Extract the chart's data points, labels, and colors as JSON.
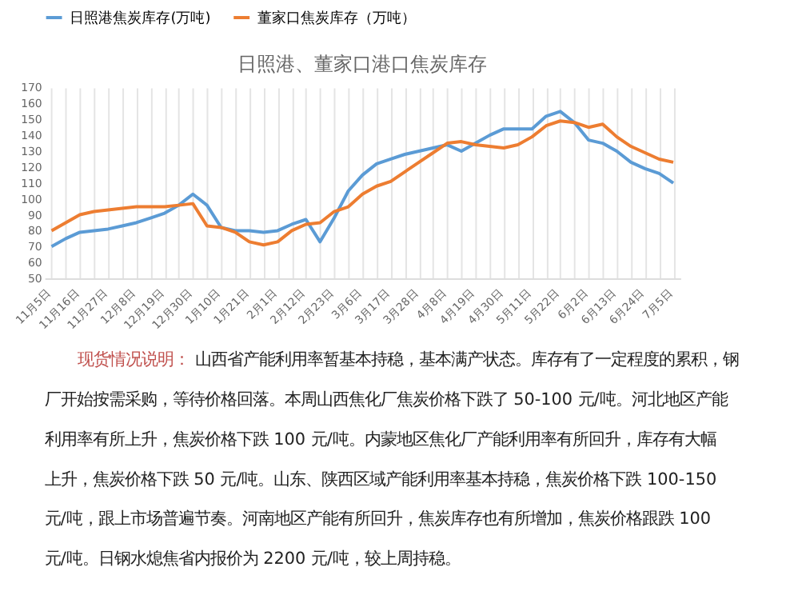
{
  "chart_data": {
    "type": "line",
    "title": "日照港、董家口港口焦炭库存",
    "categories": [
      "11月5日",
      null,
      "11月16日",
      null,
      "11月27日",
      null,
      "12月8日",
      null,
      "12月19日",
      null,
      "12月30日",
      null,
      "1月10日",
      null,
      "1月21日",
      null,
      "2月1日",
      null,
      "2月12日",
      null,
      "2月23日",
      null,
      "3月6日",
      null,
      "3月17日",
      null,
      "3月28日",
      null,
      "4月8日",
      null,
      "4月19日",
      null,
      "4月30日",
      null,
      "5月11日",
      null,
      "5月22日",
      null,
      "6月2日",
      null,
      "6月13日",
      null,
      "6月24日",
      null,
      "7月5日"
    ],
    "series": [
      {
        "name": "日照港焦炭库存(万吨)",
        "color": "#5b9bd5",
        "values": [
          70,
          75,
          79,
          80,
          81,
          83,
          85,
          88,
          91,
          96,
          103,
          96,
          82,
          80,
          80,
          79,
          80,
          84,
          87,
          73,
          88,
          105,
          115,
          122,
          125,
          128,
          130,
          132,
          134,
          130,
          135,
          140,
          144,
          144,
          144,
          152,
          155,
          148,
          137,
          135,
          130,
          123,
          119,
          116,
          110
        ]
      },
      {
        "name": "董家口焦炭库存（万吨）",
        "color": "#ed7d31",
        "values": [
          80,
          85,
          90,
          92,
          93,
          94,
          95,
          95,
          95,
          96,
          97,
          83,
          82,
          79,
          73,
          71,
          73,
          80,
          84,
          85,
          92,
          95,
          103,
          108,
          111,
          117,
          123,
          129,
          135,
          136,
          134,
          133,
          132,
          134,
          139,
          146,
          149,
          148,
          145,
          147,
          139,
          133,
          129,
          125,
          123
        ]
      }
    ],
    "ylim": [
      50,
      170
    ],
    "yticks": [
      50,
      60,
      70,
      80,
      90,
      100,
      110,
      120,
      130,
      140,
      150,
      160,
      170
    ],
    "grid": "x",
    "legend": "top",
    "marker": "none",
    "line_style": "solid",
    "annotations": [
      "现货情况说明：",
      "山西省产能利用率暂基本持稳，基本满产状态。库存有了一定程度的累积，钢厂开始按需采购，等待价格回落。本周山西焦化厂焦炭价格下跌了 50-100 元/吨。河北地区产能利用率有所上升，焦炭价格下跌 100 元/吨。内蒙地区焦化厂产能利用率有所回升，库存有大幅上升，焦炭价格下跌 50 元/吨。山东、陕西区域产能利用率基本持稳，焦炭价格下跌 100-150 元/吨，跟上市场普遍节奏。河南地区产能有所回升，焦炭库存也有所增加，焦炭价格跟跌 100 元/吨。日钢水熄焦省内报价为 2200 元/吨，较上周持稳。"
    ]
  }
}
